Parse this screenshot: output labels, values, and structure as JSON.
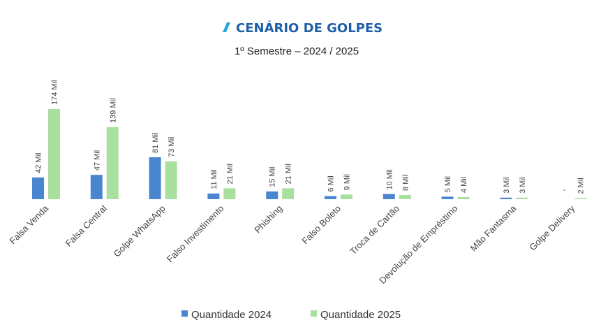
{
  "chart_data": {
    "type": "bar",
    "title": "CENÁRIO DE GOLPES",
    "subtitle": "1º Semestre – 2024 / 2025",
    "categories": [
      "Falsa Venda",
      "Falsa Central",
      "Golpe WhatsApp",
      "Falso Investimento",
      "Phishing",
      "Falso Boleto",
      "Troca de Cartão",
      "Devolução de Empréstimo",
      "Mão Fantasma",
      "Golpe Delivery"
    ],
    "series": [
      {
        "name": "Quantidade 2024",
        "color": "#4a86d0",
        "values": [
          42,
          47,
          81,
          11,
          15,
          6,
          10,
          5,
          3,
          0
        ],
        "labels": [
          "42 Mil",
          "47 Mil",
          "81 Mil",
          "11 Mil",
          "15 Mil",
          "6 Mil",
          "10 Mil",
          "5 Mil",
          "3 Mil",
          "-"
        ]
      },
      {
        "name": "Quantidade 2025",
        "color": "#a9df9f",
        "values": [
          174,
          139,
          73,
          21,
          21,
          9,
          8,
          4,
          3,
          2
        ],
        "labels": [
          "174 Mil",
          "139 Mil",
          "73 Mil",
          "21 Mil",
          "21 Mil",
          "9 Mil",
          "8 Mil",
          "4 Mil",
          "3 Mil",
          "2 Mil"
        ]
      }
    ],
    "ylim": [
      0,
      174
    ],
    "grid": false,
    "legend_position": "bottom",
    "accent_color": "#2aa6d8",
    "title_color": "#1f5fa8"
  }
}
